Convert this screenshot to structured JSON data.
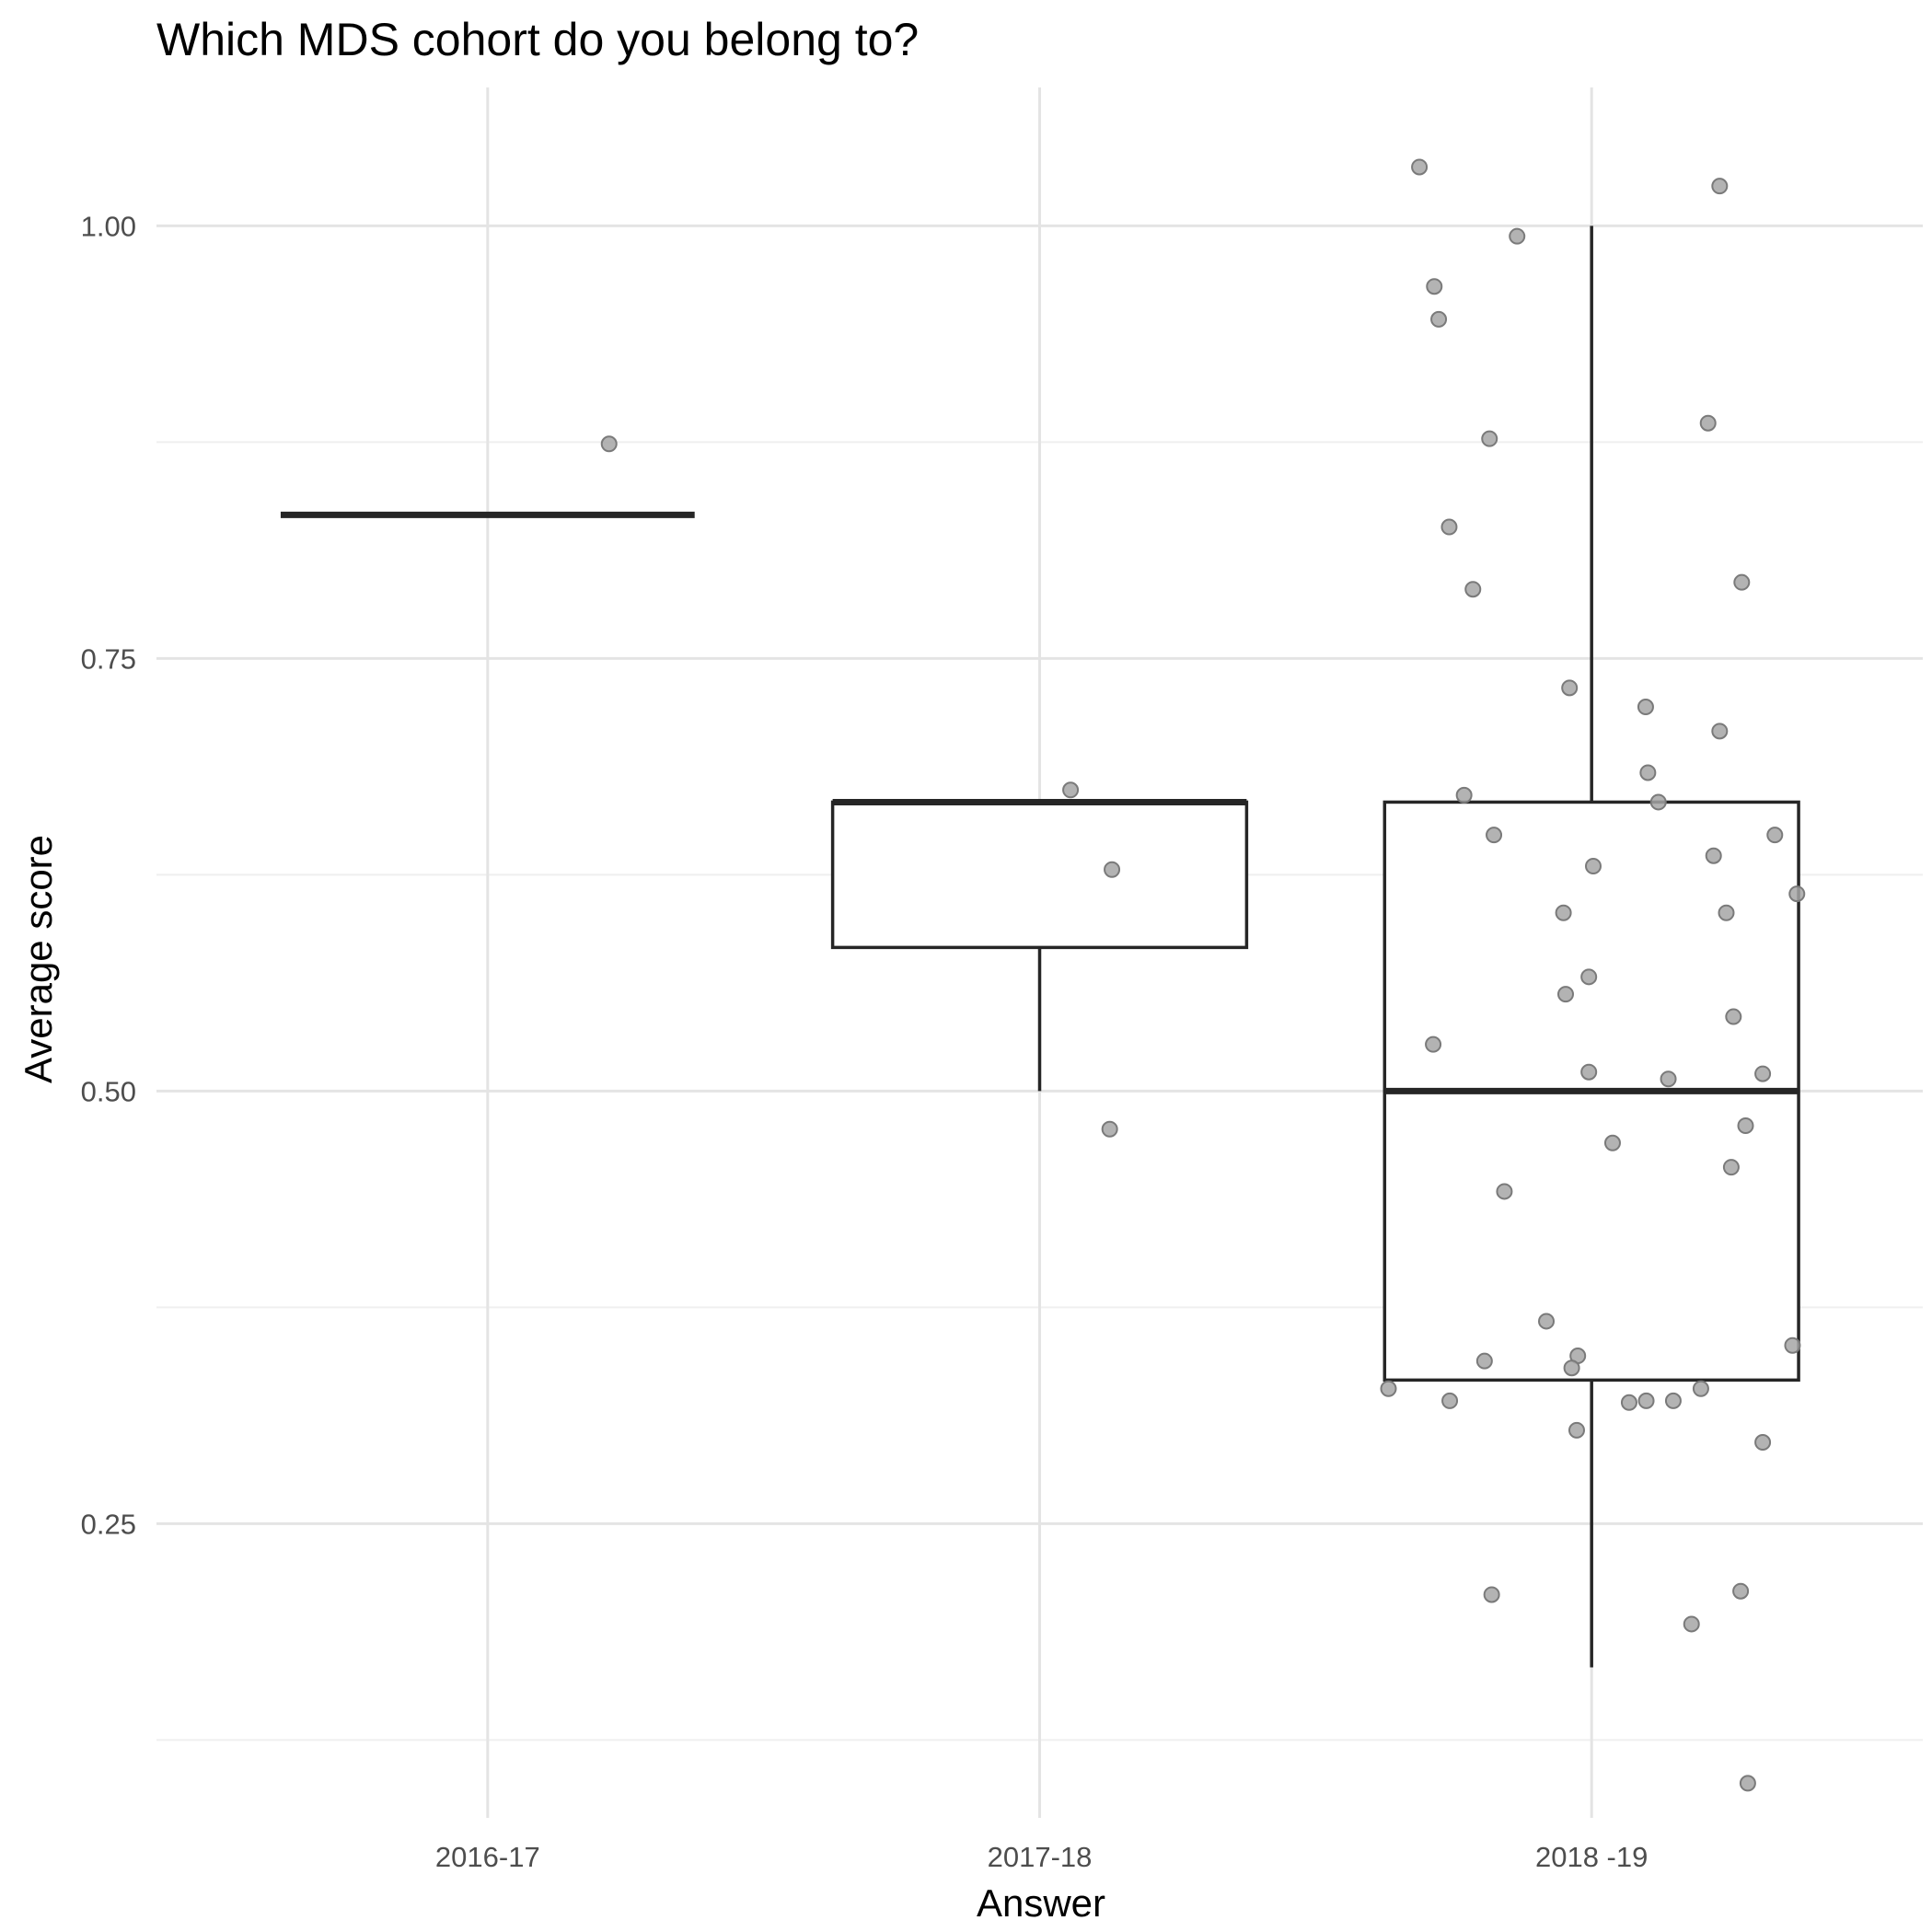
{
  "chart_data": {
    "type": "box",
    "title": "Which MDS cohort do you belong to?",
    "xlabel": "Answer",
    "ylabel": "Average score",
    "categories": [
      "2016-17",
      "2017-18",
      "2018 -19"
    ],
    "y_ticks": [
      0.25,
      0.5,
      0.75,
      1.0
    ],
    "y_tick_labels": [
      "0.25",
      "0.50",
      "0.75",
      "1.00"
    ],
    "ylim": [
      0.08,
      1.08
    ],
    "grid": true,
    "legend": "none",
    "boxes": [
      {
        "category": "2016-17",
        "lower_whisker": 0.833,
        "q1": 0.833,
        "median": 0.833,
        "q3": 0.833,
        "upper_whisker": 0.833
      },
      {
        "category": "2017-18",
        "lower_whisker": 0.5,
        "q1": 0.583,
        "median": 0.667,
        "q3": 0.667,
        "upper_whisker": 0.667
      },
      {
        "category": "2018 -19",
        "lower_whisker": 0.167,
        "q1": 0.333,
        "median": 0.5,
        "q3": 0.667,
        "upper_whisker": 1.0
      }
    ],
    "points": [
      {
        "category": "2016-17",
        "jitter": 0.22,
        "y": 0.874
      },
      {
        "category": "2017-18",
        "jitter": 0.056,
        "y": 0.674
      },
      {
        "category": "2017-18",
        "jitter": 0.131,
        "y": 0.628
      },
      {
        "category": "2017-18",
        "jitter": 0.127,
        "y": 0.478
      },
      {
        "category": "2018 -19",
        "jitter": -0.312,
        "y": 1.034
      },
      {
        "category": "2018 -19",
        "jitter": 0.232,
        "y": 1.023
      },
      {
        "category": "2018 -19",
        "jitter": -0.135,
        "y": 0.994
      },
      {
        "category": "2018 -19",
        "jitter": -0.285,
        "y": 0.965
      },
      {
        "category": "2018 -19",
        "jitter": -0.277,
        "y": 0.946
      },
      {
        "category": "2018 -19",
        "jitter": 0.211,
        "y": 0.886
      },
      {
        "category": "2018 -19",
        "jitter": -0.185,
        "y": 0.877
      },
      {
        "category": "2018 -19",
        "jitter": -0.258,
        "y": 0.826
      },
      {
        "category": "2018 -19",
        "jitter": 0.272,
        "y": 0.794
      },
      {
        "category": "2018 -19",
        "jitter": -0.215,
        "y": 0.79
      },
      {
        "category": "2018 -19",
        "jitter": -0.04,
        "y": 0.733
      },
      {
        "category": "2018 -19",
        "jitter": 0.098,
        "y": 0.722
      },
      {
        "category": "2018 -19",
        "jitter": 0.232,
        "y": 0.708
      },
      {
        "category": "2018 -19",
        "jitter": 0.102,
        "y": 0.684
      },
      {
        "category": "2018 -19",
        "jitter": -0.231,
        "y": 0.671
      },
      {
        "category": "2018 -19",
        "jitter": 0.121,
        "y": 0.667
      },
      {
        "category": "2018 -19",
        "jitter": -0.177,
        "y": 0.648
      },
      {
        "category": "2018 -19",
        "jitter": 0.332,
        "y": 0.648
      },
      {
        "category": "2018 -19",
        "jitter": 0.221,
        "y": 0.636
      },
      {
        "category": "2018 -19",
        "jitter": 0.003,
        "y": 0.63
      },
      {
        "category": "2018 -19",
        "jitter": 0.372,
        "y": 0.614
      },
      {
        "category": "2018 -19",
        "jitter": -0.051,
        "y": 0.603
      },
      {
        "category": "2018 -19",
        "jitter": 0.244,
        "y": 0.603
      },
      {
        "category": "2018 -19",
        "jitter": -0.005,
        "y": 0.566
      },
      {
        "category": "2018 -19",
        "jitter": -0.047,
        "y": 0.556
      },
      {
        "category": "2018 -19",
        "jitter": 0.257,
        "y": 0.543
      },
      {
        "category": "2018 -19",
        "jitter": -0.287,
        "y": 0.527
      },
      {
        "category": "2018 -19",
        "jitter": -0.005,
        "y": 0.511
      },
      {
        "category": "2018 -19",
        "jitter": 0.139,
        "y": 0.507
      },
      {
        "category": "2018 -19",
        "jitter": 0.31,
        "y": 0.51
      },
      {
        "category": "2018 -19",
        "jitter": 0.279,
        "y": 0.48
      },
      {
        "category": "2018 -19",
        "jitter": 0.038,
        "y": 0.47
      },
      {
        "category": "2018 -19",
        "jitter": 0.253,
        "y": 0.456
      },
      {
        "category": "2018 -19",
        "jitter": -0.158,
        "y": 0.442
      },
      {
        "category": "2018 -19",
        "jitter": -0.082,
        "y": 0.367
      },
      {
        "category": "2018 -19",
        "jitter": -0.025,
        "y": 0.347
      },
      {
        "category": "2018 -19",
        "jitter": 0.364,
        "y": 0.353
      },
      {
        "category": "2018 -19",
        "jitter": -0.194,
        "y": 0.344
      },
      {
        "category": "2018 -19",
        "jitter": -0.036,
        "y": 0.34
      },
      {
        "category": "2018 -19",
        "jitter": -0.368,
        "y": 0.328
      },
      {
        "category": "2018 -19",
        "jitter": 0.198,
        "y": 0.328
      },
      {
        "category": "2018 -19",
        "jitter": -0.257,
        "y": 0.321
      },
      {
        "category": "2018 -19",
        "jitter": 0.068,
        "y": 0.32
      },
      {
        "category": "2018 -19",
        "jitter": 0.099,
        "y": 0.321
      },
      {
        "category": "2018 -19",
        "jitter": 0.148,
        "y": 0.321
      },
      {
        "category": "2018 -19",
        "jitter": -0.027,
        "y": 0.304
      },
      {
        "category": "2018 -19",
        "jitter": 0.31,
        "y": 0.297
      },
      {
        "category": "2018 -19",
        "jitter": -0.181,
        "y": 0.209
      },
      {
        "category": "2018 -19",
        "jitter": 0.27,
        "y": 0.211
      },
      {
        "category": "2018 -19",
        "jitter": 0.181,
        "y": 0.192
      },
      {
        "category": "2018 -19",
        "jitter": 0.283,
        "y": 0.1
      }
    ]
  }
}
